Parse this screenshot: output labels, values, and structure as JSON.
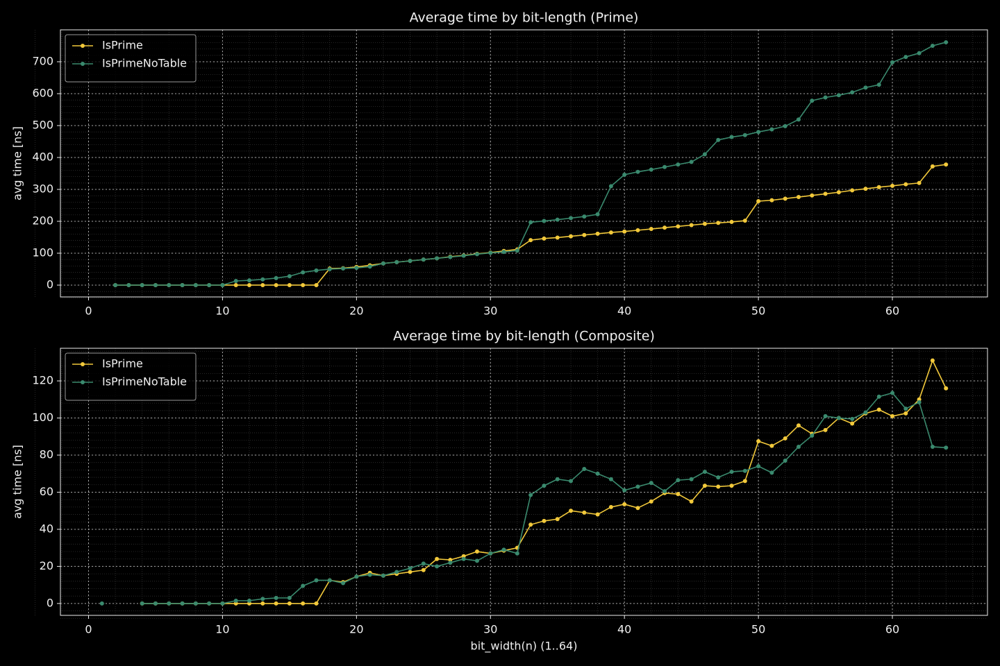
{
  "chart_data": [
    {
      "type": "line",
      "title": "Average time by bit-length (Prime)",
      "ylabel": "avg time [ns]",
      "x": [
        2,
        3,
        4,
        5,
        6,
        7,
        8,
        9,
        10,
        11,
        12,
        13,
        14,
        15,
        16,
        17,
        18,
        19,
        20,
        21,
        22,
        23,
        24,
        25,
        26,
        27,
        28,
        29,
        30,
        31,
        32,
        33,
        34,
        35,
        36,
        37,
        38,
        39,
        40,
        41,
        42,
        43,
        44,
        45,
        46,
        47,
        48,
        49,
        50,
        51,
        52,
        53,
        54,
        55,
        56,
        57,
        58,
        59,
        60,
        61,
        62,
        63,
        64
      ],
      "series": [
        {
          "name": "IsPrime",
          "color": "#f2c93b",
          "values": [
            0,
            0,
            0,
            0,
            0,
            0,
            0,
            0,
            0,
            0,
            0,
            0,
            0,
            0,
            0,
            0,
            52,
            53,
            57,
            62,
            68,
            72,
            76,
            80,
            84,
            89,
            93,
            98,
            102,
            107,
            112,
            141,
            146,
            149,
            153,
            157,
            161,
            165,
            168,
            172,
            176,
            180,
            184,
            188,
            192,
            195,
            198,
            202,
            263,
            266,
            271,
            276,
            281,
            286,
            291,
            297,
            302,
            307,
            311,
            316,
            320,
            372,
            378
          ]
        },
        {
          "name": "IsPrimeNoTable",
          "color": "#3a8a6e",
          "values": [
            0,
            0,
            0,
            0,
            0,
            0,
            0,
            0,
            0,
            13,
            15,
            18,
            22,
            28,
            40,
            46,
            50,
            52,
            54,
            58,
            68,
            72,
            76,
            80,
            84,
            88,
            92,
            97,
            101,
            104,
            108,
            197,
            201,
            205,
            210,
            215,
            222,
            310,
            346,
            355,
            362,
            370,
            378,
            386,
            410,
            455,
            464,
            470,
            480,
            488,
            498,
            519,
            578,
            588,
            595,
            604,
            619,
            628,
            698,
            715,
            727,
            750,
            761
          ]
        }
      ],
      "xlim": [
        -2.1,
        67.1
      ],
      "ylim": [
        -37,
        800
      ],
      "xticks": [
        0,
        10,
        20,
        30,
        40,
        50,
        60
      ],
      "yticks": [
        0,
        100,
        200,
        300,
        400,
        500,
        600,
        700
      ],
      "grid": true,
      "minor_grid": true,
      "legend": "upper left"
    },
    {
      "type": "line",
      "title": "Average time by bit-length (Composite)",
      "ylabel": "avg time [ns]",
      "xlabel": "bit_width(n) (1..64)",
      "x": [
        1,
        2,
        3,
        4,
        5,
        6,
        7,
        8,
        9,
        10,
        11,
        12,
        13,
        14,
        15,
        16,
        17,
        18,
        19,
        20,
        21,
        22,
        23,
        24,
        25,
        26,
        27,
        28,
        29,
        30,
        31,
        32,
        33,
        34,
        35,
        36,
        37,
        38,
        39,
        40,
        41,
        42,
        43,
        44,
        45,
        46,
        47,
        48,
        49,
        50,
        51,
        52,
        53,
        54,
        55,
        56,
        57,
        58,
        59,
        60,
        61,
        62,
        63,
        64
      ],
      "series": [
        {
          "name": "IsPrime",
          "color": "#f2c93b",
          "values": [
            null,
            null,
            null,
            0,
            0,
            0,
            0,
            0,
            0,
            0,
            0,
            0,
            0,
            0,
            0,
            0,
            0,
            12.5,
            11.5,
            14.5,
            16.5,
            15,
            16,
            17,
            18,
            24,
            23.5,
            25.5,
            28,
            27,
            28.5,
            30,
            42.5,
            44.5,
            45.5,
            50,
            49,
            48,
            52,
            53.5,
            51.5,
            55,
            59.5,
            59,
            55,
            63.5,
            63,
            63.5,
            66,
            87.5,
            85,
            89,
            96,
            91.5,
            93.5,
            100,
            97,
            102.5,
            104.5,
            101,
            102.5,
            110,
            131,
            116
          ]
        },
        {
          "name": "IsPrimeNoTable",
          "color": "#3a8a6e",
          "values": [
            0,
            null,
            null,
            0,
            0,
            0,
            0,
            0,
            0,
            0,
            1.5,
            1.5,
            2.5,
            3,
            3,
            9.5,
            12.5,
            12.5,
            11,
            14.5,
            15.5,
            15,
            17,
            19,
            21.5,
            20,
            22,
            24,
            23,
            27,
            29,
            27,
            58.5,
            63.5,
            67,
            66,
            72.5,
            70,
            67,
            61,
            63,
            65,
            60.5,
            66.5,
            67,
            71,
            68,
            71,
            71.5,
            74,
            70.5,
            77,
            84.5,
            90.5,
            101,
            100,
            99.5,
            103,
            111.5,
            113.5,
            105,
            108.5,
            84.5,
            84
          ]
        }
      ],
      "xlim": [
        -2.1,
        67.1
      ],
      "ylim": [
        -6.4,
        137.6
      ],
      "xticks": [
        0,
        10,
        20,
        30,
        40,
        50,
        60
      ],
      "yticks": [
        0,
        20,
        40,
        60,
        80,
        100,
        120
      ],
      "grid": true,
      "minor_grid": true,
      "legend": "upper left"
    }
  ]
}
